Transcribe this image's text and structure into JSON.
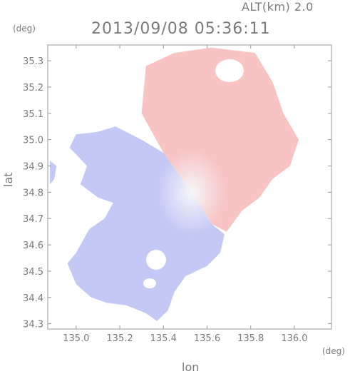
{
  "header": {
    "altitude_label": "ALT(km) 2.0",
    "timestamp": "2013/09/08 05:36:11"
  },
  "chart_data": {
    "type": "heatmap",
    "title": "2013/09/08 05:36:11",
    "subtitle": "ALT(km) 2.0",
    "xlabel": "lon",
    "ylabel": "lat",
    "x_unit": "(deg)",
    "y_unit": "(deg)",
    "xlim": [
      134.87,
      136.17
    ],
    "ylim": [
      34.28,
      35.36
    ],
    "x_ticks": [
      "135.0",
      "135.2",
      "135.4",
      "135.6",
      "135.8",
      "136.0"
    ],
    "y_ticks": [
      "34.3",
      "34.4",
      "34.5",
      "34.6",
      "34.7",
      "34.8",
      "34.9",
      "35.0",
      "35.1",
      "35.2",
      "35.3"
    ],
    "radar_center": {
      "lon": 135.53,
      "lat": 34.8
    },
    "colors": {
      "approaching": "#c4c8f4",
      "receding": "#f7c3c3",
      "neutral": "#f4f4f8",
      "frame": "#999999"
    },
    "regions": [
      {
        "name": "receding",
        "polygon": [
          [
            135.53,
            34.8
          ],
          [
            135.4,
            34.95
          ],
          [
            135.3,
            35.1
          ],
          [
            135.32,
            35.28
          ],
          [
            135.45,
            35.33
          ],
          [
            135.62,
            35.35
          ],
          [
            135.82,
            35.33
          ],
          [
            135.9,
            35.22
          ],
          [
            135.95,
            35.1
          ],
          [
            136.02,
            35.0
          ],
          [
            135.98,
            34.9
          ],
          [
            135.9,
            34.85
          ],
          [
            135.84,
            34.78
          ],
          [
            135.76,
            34.73
          ],
          [
            135.69,
            34.65
          ],
          [
            135.62,
            34.68
          ]
        ]
      },
      {
        "name": "approaching",
        "polygon": [
          [
            135.53,
            34.8
          ],
          [
            135.4,
            34.95
          ],
          [
            135.3,
            35.0
          ],
          [
            135.18,
            35.05
          ],
          [
            135.1,
            35.03
          ],
          [
            135.0,
            35.02
          ],
          [
            134.97,
            34.97
          ],
          [
            135.05,
            34.9
          ],
          [
            135.02,
            34.83
          ],
          [
            135.1,
            34.78
          ],
          [
            135.17,
            34.76
          ],
          [
            135.13,
            34.7
          ],
          [
            135.06,
            34.66
          ],
          [
            135.0,
            34.57
          ],
          [
            134.96,
            34.53
          ],
          [
            135.0,
            34.45
          ],
          [
            135.07,
            34.4
          ],
          [
            135.14,
            34.38
          ],
          [
            135.23,
            34.37
          ],
          [
            135.32,
            34.34
          ],
          [
            135.37,
            34.31
          ],
          [
            135.42,
            34.35
          ],
          [
            135.45,
            34.42
          ],
          [
            135.5,
            34.48
          ],
          [
            135.6,
            34.52
          ],
          [
            135.66,
            34.57
          ],
          [
            135.68,
            34.64
          ],
          [
            135.62,
            34.68
          ]
        ]
      },
      {
        "name": "approaching-west-edge",
        "polygon": [
          [
            134.88,
            34.92
          ],
          [
            134.91,
            34.9
          ],
          [
            134.9,
            34.85
          ],
          [
            134.88,
            34.83
          ]
        ]
      }
    ]
  }
}
